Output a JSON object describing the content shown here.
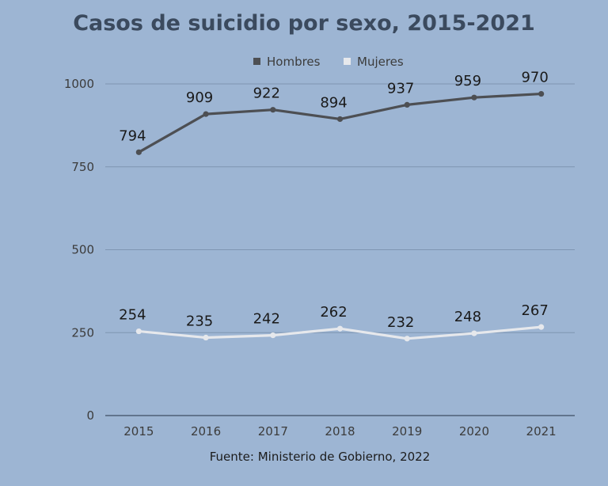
{
  "chart_data": {
    "type": "line",
    "title": "Casos de suicidio por sexo, 2015-2021",
    "source": "Fuente: Ministerio de Gobierno, 2022",
    "categories": [
      "2015",
      "2016",
      "2017",
      "2018",
      "2019",
      "2020",
      "2021"
    ],
    "series": [
      {
        "name": "Hombres",
        "color": "#4d4f53",
        "values": [
          794,
          909,
          922,
          894,
          937,
          959,
          970
        ]
      },
      {
        "name": "Mujeres",
        "color": "#e6e8ec",
        "values": [
          254,
          235,
          242,
          262,
          232,
          248,
          267
        ]
      }
    ],
    "ylim": [
      0,
      1000
    ],
    "yticks": [
      0,
      250,
      500,
      750,
      1000
    ],
    "grid": true,
    "legend_position": "top-center"
  }
}
